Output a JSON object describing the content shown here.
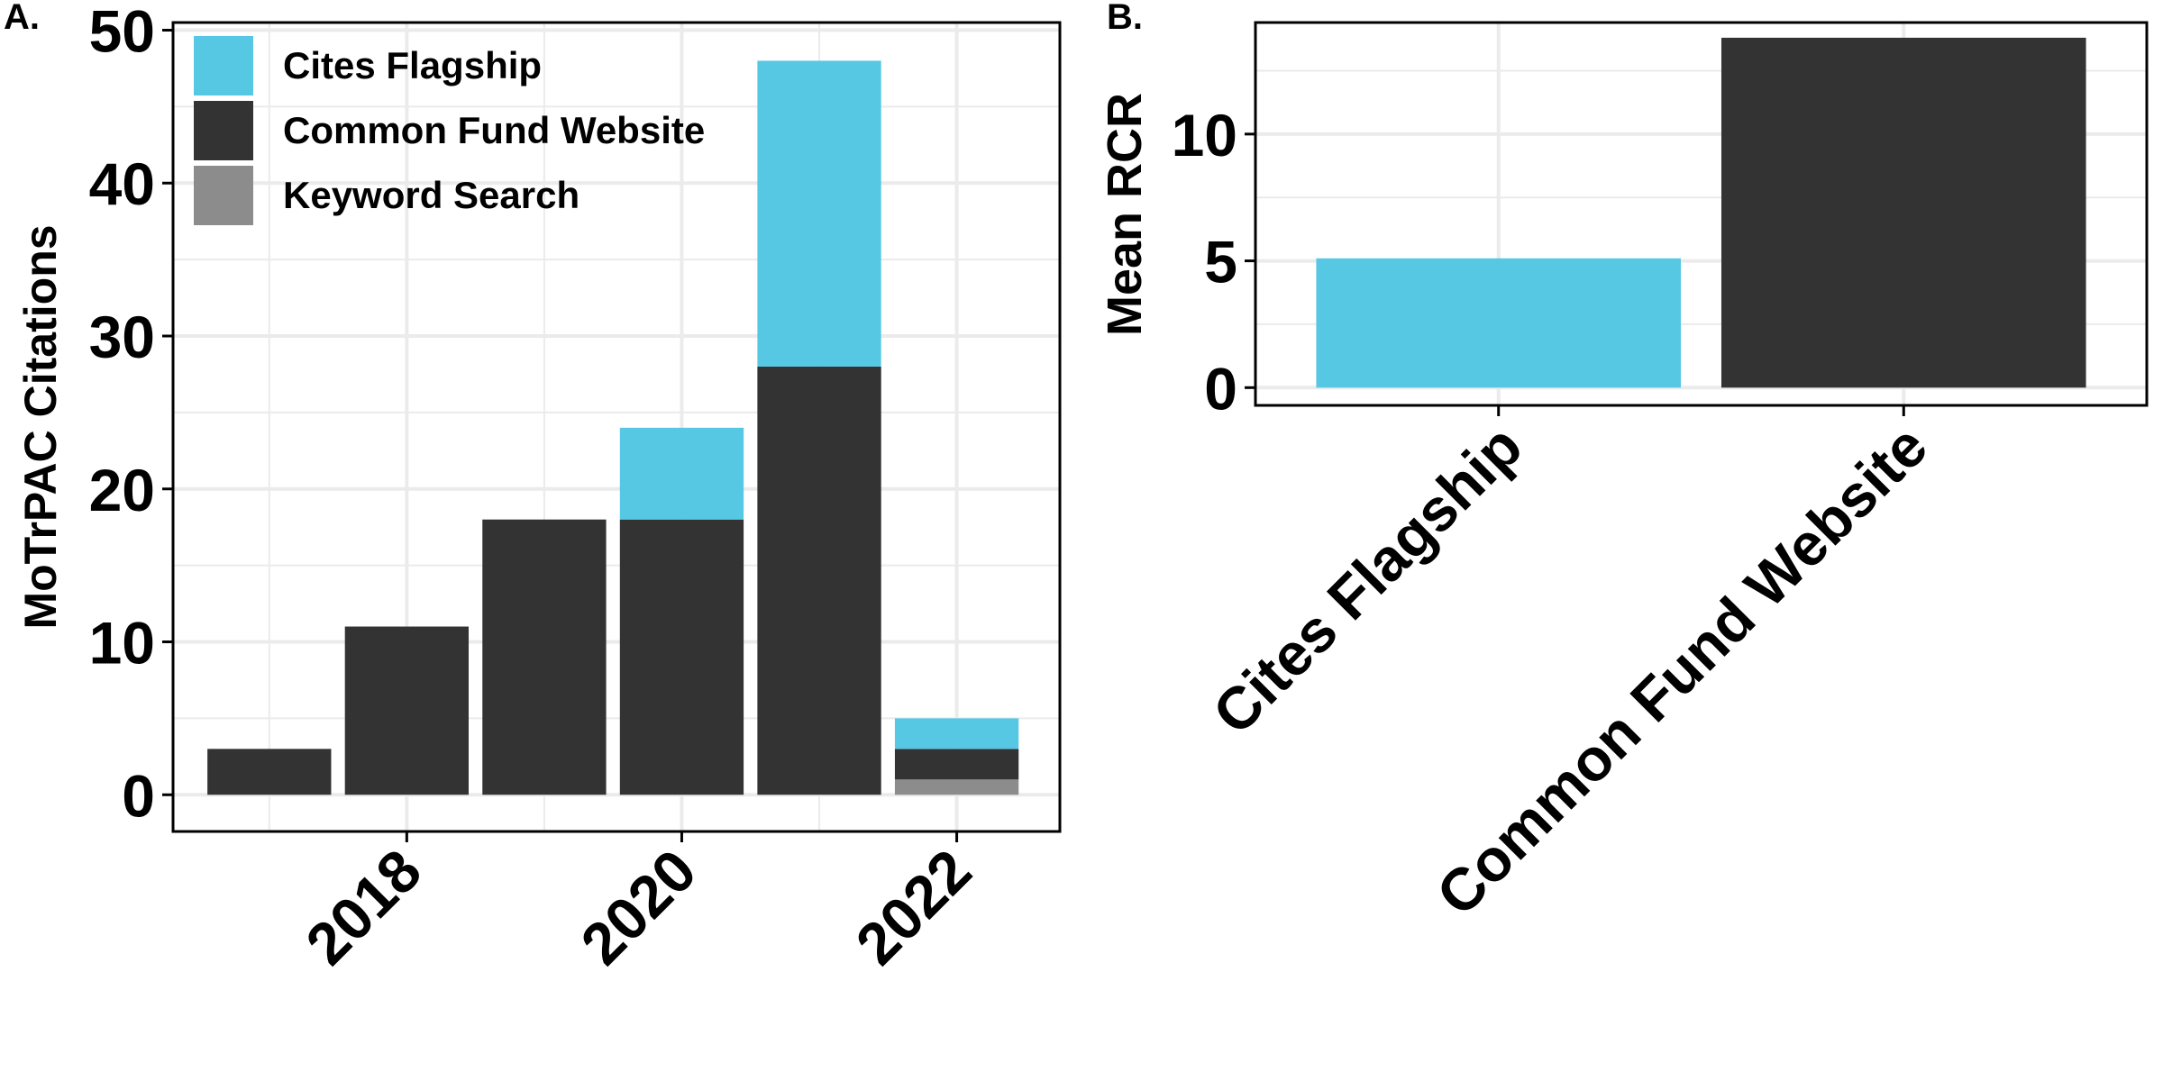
{
  "colors": {
    "cites_flagship": "#56C8E4",
    "common_fund_website": "#333333",
    "keyword_search": "#8C8C8C",
    "grid": "#EBEBEB"
  },
  "panel_a": {
    "letter": "A."
  },
  "panel_b": {
    "letter": "B."
  },
  "chart_data": [
    {
      "type": "bar",
      "stacked": true,
      "x": [
        2017,
        2018,
        2019,
        2020,
        2021,
        2022
      ],
      "x_tick_labels": [
        "2018",
        "2020",
        "2022"
      ],
      "x_ticks": [
        2018,
        2020,
        2022
      ],
      "xlim": [
        2016.3,
        2022.75
      ],
      "y_ticks": [
        0,
        10,
        20,
        30,
        40,
        50
      ],
      "ylim": [
        -2.4,
        50.5
      ],
      "xlabel": "",
      "ylabel": "MoTrPAC Citations",
      "grid": true,
      "legend_position": "top-left",
      "series": [
        {
          "name": "Keyword Search",
          "color": "#8C8C8C",
          "values": [
            0,
            0,
            0,
            0,
            0,
            1
          ]
        },
        {
          "name": "Common Fund Website",
          "color": "#333333",
          "values": [
            3,
            11,
            18,
            18,
            28,
            2
          ]
        },
        {
          "name": "Cites Flagship",
          "color": "#56C8E4",
          "values": [
            0,
            0,
            0,
            6,
            20,
            2
          ]
        }
      ],
      "legend": [
        "Cites Flagship",
        "Common Fund Website",
        "Keyword Search"
      ]
    },
    {
      "type": "bar",
      "categories": [
        "Cites Flagship",
        "Common Fund Website"
      ],
      "values": [
        5.1,
        13.8
      ],
      "colors": [
        "#56C8E4",
        "#333333"
      ],
      "y_ticks": [
        0,
        5,
        10
      ],
      "ylim": [
        -0.7,
        14.4
      ],
      "xlabel": "",
      "ylabel": "Mean RCR",
      "grid": true
    }
  ]
}
